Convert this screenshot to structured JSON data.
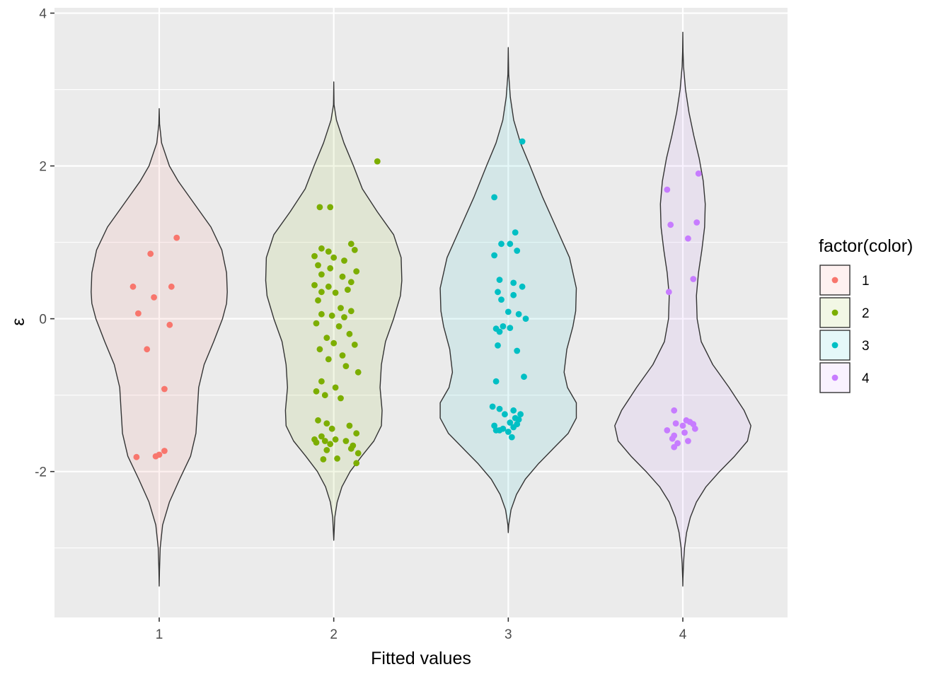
{
  "chart_data": {
    "type": "violin",
    "xlabel": "Fitted values",
    "ylabel": "ε",
    "categories": [
      "1",
      "2",
      "3",
      "4"
    ],
    "ylim": [
      -3.91,
      4.07
    ],
    "yticks": [
      -2,
      0,
      2,
      4
    ],
    "yticks_minor": [
      -3,
      -1,
      1,
      3
    ],
    "grid": true,
    "legend": {
      "title": "factor(color)",
      "position": "right",
      "entries": [
        "1",
        "2",
        "3",
        "4"
      ]
    },
    "colors": {
      "1": "#F8766D",
      "2": "#7CAE00",
      "3": "#00BFC4",
      "4": "#C77CFF",
      "panel": "#EBEBEB",
      "grid": "#FFFFFF",
      "outline": "#333333"
    },
    "series": [
      {
        "name": "1",
        "violin": [
          [
            2.75,
            0.0
          ],
          [
            2.55,
            0.005
          ],
          [
            2.3,
            0.035
          ],
          [
            2.0,
            0.15
          ],
          [
            1.8,
            0.28
          ],
          [
            1.5,
            0.52
          ],
          [
            1.2,
            0.76
          ],
          [
            0.9,
            0.92
          ],
          [
            0.6,
            0.99
          ],
          [
            0.35,
            1.0
          ],
          [
            0.2,
            0.99
          ],
          [
            0.0,
            0.93
          ],
          [
            -0.3,
            0.8
          ],
          [
            -0.6,
            0.66
          ],
          [
            -0.9,
            0.58
          ],
          [
            -1.2,
            0.56
          ],
          [
            -1.5,
            0.54
          ],
          [
            -1.8,
            0.46
          ],
          [
            -2.1,
            0.3
          ],
          [
            -2.4,
            0.15
          ],
          [
            -2.7,
            0.05
          ],
          [
            -3.0,
            0.015
          ],
          [
            -3.3,
            0.004
          ],
          [
            -3.5,
            0.0
          ]
        ],
        "points": [
          [
            1.1,
            1.06
          ],
          [
            0.95,
            0.85
          ],
          [
            0.85,
            0.42
          ],
          [
            1.07,
            0.42
          ],
          [
            0.97,
            0.28
          ],
          [
            0.88,
            0.07
          ],
          [
            1.06,
            -0.08
          ],
          [
            0.93,
            -0.4
          ],
          [
            1.03,
            -0.92
          ],
          [
            1.03,
            -1.73
          ],
          [
            1.0,
            -1.78
          ],
          [
            0.98,
            -1.8
          ],
          [
            0.87,
            -1.81
          ]
        ]
      },
      {
        "name": "2",
        "violin": [
          [
            3.1,
            0.0
          ],
          [
            2.8,
            0.004
          ],
          [
            2.6,
            0.04
          ],
          [
            2.3,
            0.15
          ],
          [
            2.0,
            0.29
          ],
          [
            1.7,
            0.42
          ],
          [
            1.4,
            0.64
          ],
          [
            1.1,
            0.88
          ],
          [
            0.8,
            0.99
          ],
          [
            0.5,
            1.0
          ],
          [
            0.3,
            0.98
          ],
          [
            0.0,
            0.88
          ],
          [
            -0.3,
            0.76
          ],
          [
            -0.6,
            0.7
          ],
          [
            -0.9,
            0.68
          ],
          [
            -1.2,
            0.71
          ],
          [
            -1.4,
            0.7
          ],
          [
            -1.6,
            0.59
          ],
          [
            -1.8,
            0.41
          ],
          [
            -2.0,
            0.24
          ],
          [
            -2.2,
            0.12
          ],
          [
            -2.4,
            0.05
          ],
          [
            -2.6,
            0.015
          ],
          [
            -2.9,
            0.0
          ]
        ],
        "points": [
          [
            2.25,
            2.06
          ],
          [
            1.92,
            1.46
          ],
          [
            1.98,
            1.46
          ],
          [
            1.93,
            0.92
          ],
          [
            1.97,
            0.88
          ],
          [
            2.1,
            0.98
          ],
          [
            2.12,
            0.9
          ],
          [
            1.89,
            0.82
          ],
          [
            2.0,
            0.8
          ],
          [
            2.06,
            0.76
          ],
          [
            1.91,
            0.7
          ],
          [
            1.98,
            0.66
          ],
          [
            2.13,
            0.62
          ],
          [
            1.93,
            0.58
          ],
          [
            2.05,
            0.55
          ],
          [
            1.89,
            0.44
          ],
          [
            1.97,
            0.42
          ],
          [
            2.1,
            0.48
          ],
          [
            2.08,
            0.38
          ],
          [
            1.93,
            0.35
          ],
          [
            2.01,
            0.34
          ],
          [
            1.91,
            0.24
          ],
          [
            2.04,
            0.14
          ],
          [
            2.1,
            0.1
          ],
          [
            1.93,
            0.06
          ],
          [
            1.99,
            0.04
          ],
          [
            2.06,
            0.02
          ],
          [
            1.9,
            -0.06
          ],
          [
            2.03,
            -0.1
          ],
          [
            2.09,
            -0.2
          ],
          [
            1.96,
            -0.25
          ],
          [
            2.0,
            -0.32
          ],
          [
            2.12,
            -0.34
          ],
          [
            1.92,
            -0.4
          ],
          [
            2.05,
            -0.48
          ],
          [
            1.97,
            -0.53
          ],
          [
            2.07,
            -0.62
          ],
          [
            2.14,
            -0.7
          ],
          [
            1.93,
            -0.82
          ],
          [
            2.01,
            -0.9
          ],
          [
            1.9,
            -0.95
          ],
          [
            1.95,
            -1.0
          ],
          [
            2.04,
            -1.04
          ],
          [
            1.91,
            -1.33
          ],
          [
            1.96,
            -1.37
          ],
          [
            2.09,
            -1.4
          ],
          [
            1.99,
            -1.44
          ],
          [
            2.13,
            -1.5
          ],
          [
            1.93,
            -1.54
          ],
          [
            2.01,
            -1.58
          ],
          [
            2.07,
            -1.6
          ],
          [
            1.9,
            -1.62
          ],
          [
            2.11,
            -1.66
          ],
          [
            1.96,
            -1.72
          ],
          [
            2.14,
            -1.76
          ],
          [
            1.94,
            -1.84
          ],
          [
            2.02,
            -1.83
          ],
          [
            2.13,
            -1.89
          ],
          [
            1.89,
            -1.58
          ],
          [
            1.98,
            -1.64
          ],
          [
            2.1,
            -1.7
          ],
          [
            1.95,
            -1.6
          ]
        ]
      },
      {
        "name": "3",
        "violin": [
          [
            3.55,
            0.0
          ],
          [
            3.2,
            0.006
          ],
          [
            2.9,
            0.03
          ],
          [
            2.6,
            0.08
          ],
          [
            2.3,
            0.18
          ],
          [
            2.0,
            0.32
          ],
          [
            1.6,
            0.5
          ],
          [
            1.2,
            0.7
          ],
          [
            0.8,
            0.9
          ],
          [
            0.4,
            1.0
          ],
          [
            0.1,
            0.99
          ],
          [
            -0.1,
            0.95
          ],
          [
            -0.4,
            0.86
          ],
          [
            -0.7,
            0.82
          ],
          [
            -0.9,
            0.87
          ],
          [
            -1.1,
            1.0
          ],
          [
            -1.3,
            1.0
          ],
          [
            -1.5,
            0.88
          ],
          [
            -1.7,
            0.66
          ],
          [
            -1.9,
            0.44
          ],
          [
            -2.1,
            0.25
          ],
          [
            -2.3,
            0.12
          ],
          [
            -2.5,
            0.04
          ],
          [
            -2.7,
            0.006
          ],
          [
            -2.8,
            0.0
          ]
        ],
        "points": [
          [
            3.08,
            2.32
          ],
          [
            2.92,
            1.59
          ],
          [
            3.04,
            1.13
          ],
          [
            2.96,
            0.98
          ],
          [
            3.01,
            0.98
          ],
          [
            3.05,
            0.89
          ],
          [
            2.92,
            0.83
          ],
          [
            2.95,
            0.51
          ],
          [
            3.03,
            0.47
          ],
          [
            3.08,
            0.42
          ],
          [
            2.94,
            0.35
          ],
          [
            3.03,
            0.31
          ],
          [
            2.96,
            0.25
          ],
          [
            3.0,
            0.09
          ],
          [
            3.06,
            0.06
          ],
          [
            3.1,
            0.0
          ],
          [
            2.97,
            -0.1
          ],
          [
            2.93,
            -0.13
          ],
          [
            3.01,
            -0.12
          ],
          [
            2.95,
            -0.17
          ],
          [
            2.94,
            -0.35
          ],
          [
            3.05,
            -0.42
          ],
          [
            3.09,
            -0.76
          ],
          [
            2.93,
            -0.82
          ],
          [
            2.91,
            -1.15
          ],
          [
            2.95,
            -1.18
          ],
          [
            3.03,
            -1.2
          ],
          [
            2.98,
            -1.25
          ],
          [
            3.07,
            -1.25
          ],
          [
            3.04,
            -1.3
          ],
          [
            3.01,
            -1.36
          ],
          [
            3.05,
            -1.38
          ],
          [
            2.92,
            -1.4
          ],
          [
            2.97,
            -1.44
          ],
          [
            3.03,
            -1.42
          ],
          [
            2.95,
            -1.46
          ],
          [
            3.0,
            -1.48
          ],
          [
            3.02,
            -1.55
          ],
          [
            2.93,
            -1.46
          ],
          [
            3.06,
            -1.32
          ]
        ]
      },
      {
        "name": "4",
        "violin": [
          [
            3.75,
            0.0
          ],
          [
            3.5,
            0.003
          ],
          [
            3.3,
            0.01
          ],
          [
            3.0,
            0.04
          ],
          [
            2.7,
            0.09
          ],
          [
            2.4,
            0.16
          ],
          [
            2.1,
            0.24
          ],
          [
            1.8,
            0.3
          ],
          [
            1.5,
            0.33
          ],
          [
            1.2,
            0.32
          ],
          [
            0.9,
            0.28
          ],
          [
            0.6,
            0.23
          ],
          [
            0.3,
            0.2
          ],
          [
            0.0,
            0.21
          ],
          [
            -0.3,
            0.27
          ],
          [
            -0.6,
            0.44
          ],
          [
            -0.9,
            0.68
          ],
          [
            -1.2,
            0.9
          ],
          [
            -1.4,
            1.0
          ],
          [
            -1.6,
            0.95
          ],
          [
            -1.8,
            0.76
          ],
          [
            -2.0,
            0.54
          ],
          [
            -2.2,
            0.34
          ],
          [
            -2.4,
            0.2
          ],
          [
            -2.6,
            0.11
          ],
          [
            -2.8,
            0.055
          ],
          [
            -3.0,
            0.025
          ],
          [
            -3.2,
            0.01
          ],
          [
            -3.4,
            0.002
          ],
          [
            -3.5,
            0.0
          ]
        ],
        "points": [
          [
            4.09,
            1.9
          ],
          [
            3.91,
            1.69
          ],
          [
            4.08,
            1.26
          ],
          [
            3.93,
            1.23
          ],
          [
            4.03,
            1.05
          ],
          [
            4.06,
            0.52
          ],
          [
            3.92,
            0.35
          ],
          [
            3.95,
            -1.2
          ],
          [
            4.02,
            -1.33
          ],
          [
            4.04,
            -1.35
          ],
          [
            3.96,
            -1.37
          ],
          [
            4.06,
            -1.38
          ],
          [
            4.0,
            -1.4
          ],
          [
            4.07,
            -1.44
          ],
          [
            3.91,
            -1.46
          ],
          [
            4.01,
            -1.49
          ],
          [
            3.95,
            -1.53
          ],
          [
            3.94,
            -1.57
          ],
          [
            4.03,
            -1.6
          ],
          [
            3.97,
            -1.63
          ],
          [
            3.95,
            -1.68
          ]
        ]
      }
    ]
  }
}
